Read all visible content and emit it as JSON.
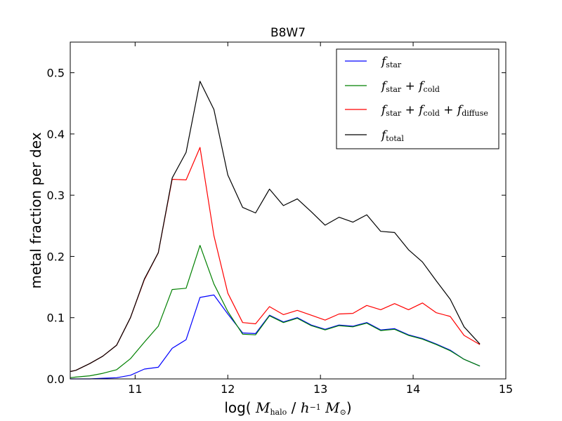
{
  "chart_data": {
    "type": "line",
    "title": "B8W7",
    "xlabel_parts": [
      {
        "t": "log( ",
        "style": "plain"
      },
      {
        "t": "M",
        "style": "math"
      },
      {
        "t": "halo",
        "style": "sub"
      },
      {
        "t": " / ",
        "style": "plain"
      },
      {
        "t": "h",
        "style": "math"
      },
      {
        "t": "−1",
        "style": "sup"
      },
      {
        "t": " M",
        "style": "math"
      },
      {
        "t": "⊙",
        "style": "sub"
      },
      {
        "t": ")",
        "style": "plain"
      }
    ],
    "ylabel": "metal fraction per dex",
    "xlim": [
      10.3,
      15.0
    ],
    "ylim": [
      0.0,
      0.55
    ],
    "xticks": [
      11,
      12,
      13,
      14,
      15
    ],
    "yticks": [
      0.0,
      0.1,
      0.2,
      0.3,
      0.4,
      0.5
    ],
    "xtick_labels": [
      "11",
      "12",
      "13",
      "14",
      "15"
    ],
    "ytick_labels": [
      "0.0",
      "0.1",
      "0.2",
      "0.3",
      "0.4",
      "0.5"
    ],
    "legend_position": "top-right",
    "x": [
      10.3,
      10.36,
      10.51,
      10.65,
      10.8,
      10.95,
      11.1,
      11.25,
      11.4,
      11.55,
      11.7,
      11.85,
      12.0,
      12.16,
      12.3,
      12.45,
      12.6,
      12.75,
      12.9,
      13.05,
      13.2,
      13.35,
      13.5,
      13.65,
      13.8,
      13.95,
      14.1,
      14.25,
      14.4,
      14.55,
      14.72
    ],
    "series": [
      {
        "name_parts": [
          {
            "t": "f",
            "style": "math"
          },
          {
            "t": "star",
            "style": "sub"
          }
        ],
        "color": "#0000ff",
        "values": [
          0.0,
          0.0,
          0.0,
          0.001,
          0.002,
          0.006,
          0.016,
          0.019,
          0.05,
          0.064,
          0.133,
          0.137,
          0.106,
          0.075,
          0.074,
          0.104,
          0.093,
          0.1,
          0.088,
          0.081,
          0.088,
          0.086,
          0.092,
          0.08,
          0.082,
          0.072,
          0.066,
          0.057,
          0.047,
          0.032,
          0.021
        ]
      },
      {
        "name_parts": [
          {
            "t": "f",
            "style": "math"
          },
          {
            "t": "star",
            "style": "sub"
          },
          {
            "t": " + ",
            "style": "plain"
          },
          {
            "t": "f",
            "style": "math"
          },
          {
            "t": "cold",
            "style": "sub"
          }
        ],
        "color": "#008000",
        "values": [
          0.002,
          0.003,
          0.005,
          0.009,
          0.015,
          0.033,
          0.06,
          0.086,
          0.146,
          0.148,
          0.218,
          0.155,
          0.11,
          0.073,
          0.072,
          0.103,
          0.092,
          0.099,
          0.087,
          0.08,
          0.087,
          0.085,
          0.091,
          0.079,
          0.081,
          0.071,
          0.065,
          0.056,
          0.046,
          0.032,
          0.021
        ]
      },
      {
        "name_parts": [
          {
            "t": "f",
            "style": "math"
          },
          {
            "t": "star",
            "style": "sub"
          },
          {
            "t": " + ",
            "style": "plain"
          },
          {
            "t": "f",
            "style": "math"
          },
          {
            "t": "cold",
            "style": "sub"
          },
          {
            "t": " + ",
            "style": "plain"
          },
          {
            "t": "f",
            "style": "math"
          },
          {
            "t": "diffuse",
            "style": "sub"
          }
        ],
        "color": "#ff0000",
        "values": [
          0.012,
          0.014,
          0.025,
          0.037,
          0.055,
          0.1,
          0.162,
          0.206,
          0.326,
          0.325,
          0.378,
          0.234,
          0.14,
          0.092,
          0.09,
          0.118,
          0.105,
          0.112,
          0.104,
          0.096,
          0.106,
          0.107,
          0.12,
          0.113,
          0.123,
          0.113,
          0.124,
          0.108,
          0.102,
          0.071,
          0.056
        ]
      },
      {
        "name_parts": [
          {
            "t": "f",
            "style": "math"
          },
          {
            "t": "total",
            "style": "sub"
          }
        ],
        "color": "#000000",
        "values": [
          0.012,
          0.014,
          0.025,
          0.037,
          0.055,
          0.1,
          0.163,
          0.206,
          0.328,
          0.37,
          0.486,
          0.44,
          0.333,
          0.28,
          0.271,
          0.31,
          0.283,
          0.294,
          0.273,
          0.251,
          0.264,
          0.256,
          0.268,
          0.241,
          0.239,
          0.211,
          0.191,
          0.16,
          0.13,
          0.085,
          0.057
        ]
      }
    ]
  }
}
